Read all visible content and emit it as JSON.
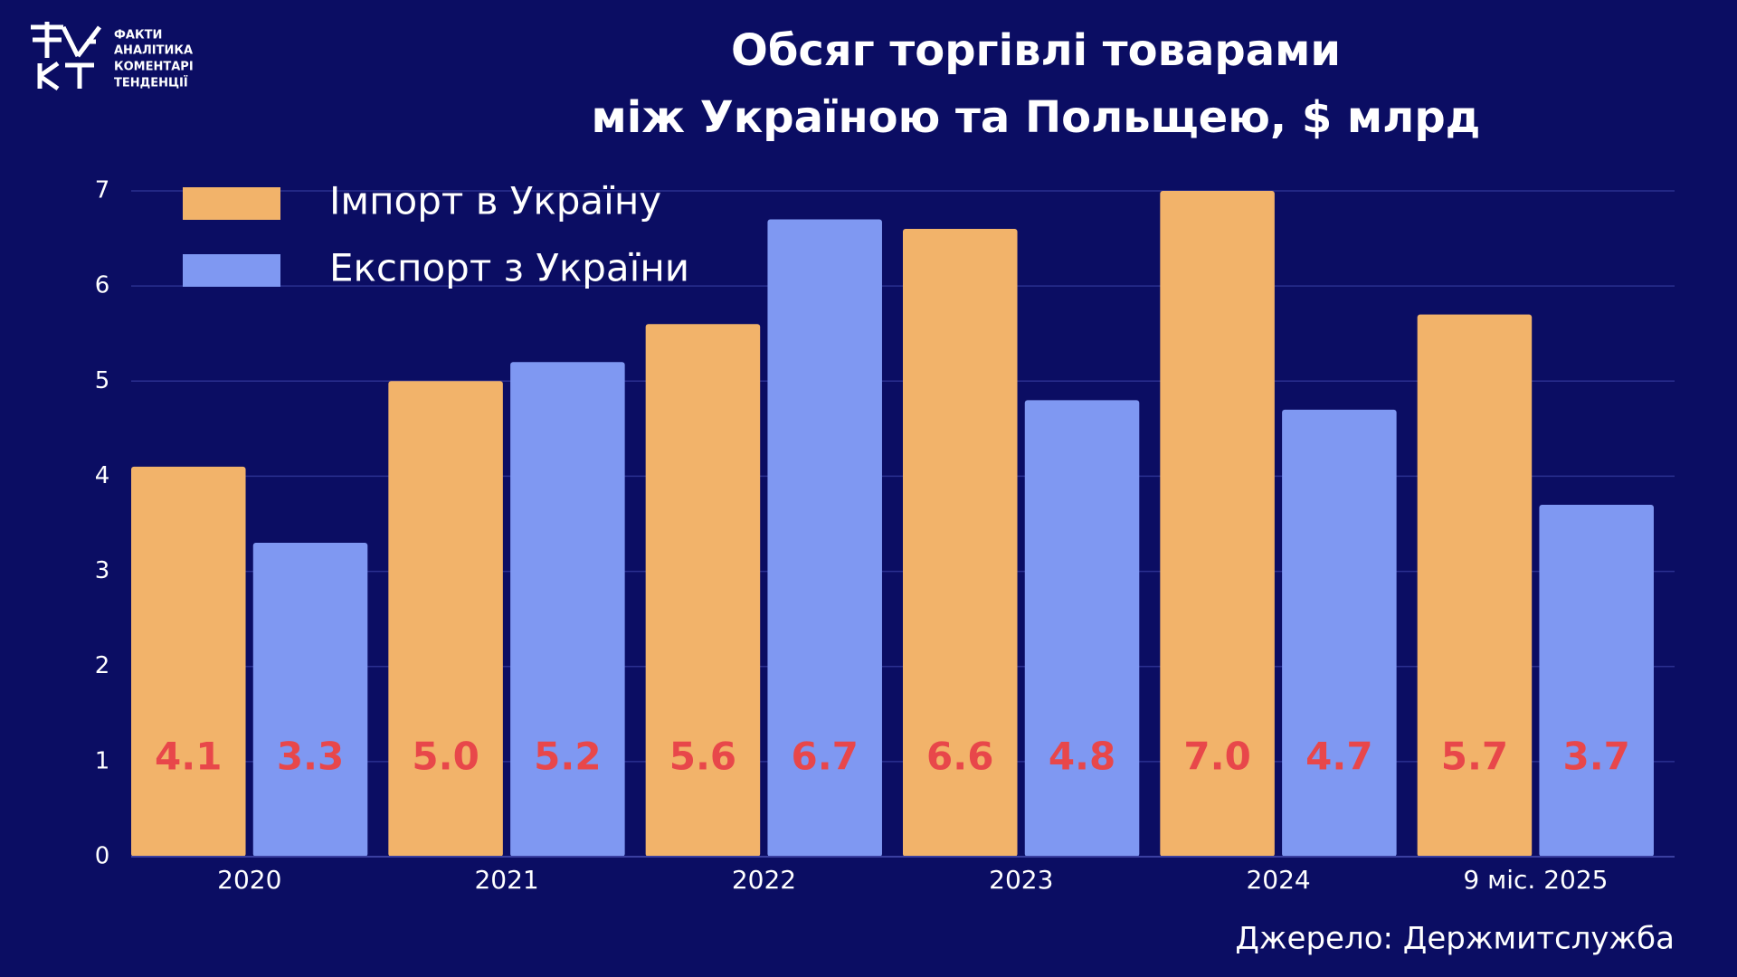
{
  "chart_data": {
    "type": "bar",
    "title": [
      "Обсяг торгівлі товарами",
      "між Україною та Польщею, $ млрд"
    ],
    "logo": [
      "ФАКТИ",
      "АНАЛІТИКА",
      "КОМЕНТАРІ",
      "ТЕНДЕНЦІЇ"
    ],
    "source": "Джерело: Держмитслужба",
    "categories": [
      "2020",
      "2021",
      "2022",
      "2023",
      "2024",
      "9 міс. 2025"
    ],
    "series": [
      {
        "name": "Імпорт в Україну",
        "color": "#f2b36a",
        "values": [
          4.1,
          5.0,
          5.6,
          6.6,
          7.0,
          5.7
        ],
        "value_labels": [
          "4.1",
          "5.0",
          "5.6",
          "6.6",
          "7.0",
          "5.7"
        ]
      },
      {
        "name": "Експорт з України",
        "color": "#7f98f2",
        "values": [
          3.3,
          5.2,
          6.7,
          4.8,
          4.7,
          3.7
        ],
        "value_labels": [
          "3.3",
          "5.2",
          "6.7",
          "4.8",
          "4.7",
          "3.7"
        ]
      }
    ],
    "value_label_color": "#e8474a",
    "ylim": [
      0,
      7
    ],
    "yticks": [
      0,
      1,
      2,
      3,
      4,
      5,
      6,
      7
    ],
    "grid": true,
    "legend": "upper left"
  }
}
